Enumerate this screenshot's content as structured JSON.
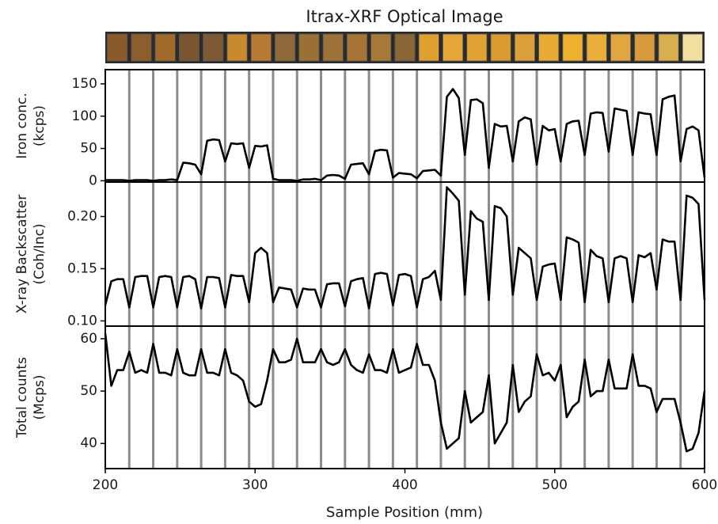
{
  "title": "Itrax-XRF Optical Image",
  "strip_colors": [
    "#8a5a2a",
    "#8c5e2b",
    "#a06a2a",
    "#7a5530",
    "#7d5a33",
    "#c98a2e",
    "#b87a35",
    "#8e6a3a",
    "#9a7035",
    "#9d7238",
    "#a57435",
    "#a77a3a",
    "#8a6535",
    "#e0a030",
    "#e5a838",
    "#e0a232",
    "#d99a30",
    "#dba03a",
    "#e8aa35",
    "#f0b030",
    "#e8ad3a",
    "#e0a640",
    "#d89a3a",
    "#d8b050",
    "#f0e0a0"
  ],
  "section_boundaries": [
    216,
    232,
    248,
    264,
    280,
    296,
    312,
    328,
    344,
    360,
    376,
    392,
    408,
    424,
    440,
    456,
    472,
    488,
    504,
    520,
    536,
    552,
    568,
    584
  ],
  "xlabel": "Sample Position (mm)",
  "xlim": [
    200,
    600
  ],
  "xticks": [
    200,
    300,
    400,
    500,
    600
  ],
  "x": [
    200,
    204,
    208,
    212,
    216,
    220,
    224,
    228,
    232,
    236,
    240,
    244,
    248,
    252,
    256,
    260,
    264,
    268,
    272,
    276,
    280,
    284,
    288,
    292,
    296,
    300,
    304,
    308,
    312,
    316,
    320,
    324,
    328,
    332,
    336,
    340,
    344,
    348,
    352,
    356,
    360,
    364,
    368,
    372,
    376,
    380,
    384,
    388,
    392,
    396,
    400,
    404,
    408,
    412,
    416,
    420,
    424,
    428,
    432,
    436,
    440,
    444,
    448,
    452,
    456,
    460,
    464,
    468,
    472,
    476,
    480,
    484,
    488,
    492,
    496,
    500,
    504,
    508,
    512,
    516,
    520,
    524,
    528,
    532,
    536,
    540,
    544,
    548,
    552,
    556,
    560,
    564,
    568,
    572,
    576,
    580,
    584,
    588,
    592,
    596,
    600
  ],
  "chart_data": [
    {
      "type": "line",
      "ylabel": [
        "Iron conc.",
        "(kcps)"
      ],
      "color": "#000000",
      "ylim": [
        -2,
        172
      ],
      "yticks": [
        0,
        50,
        100,
        150
      ],
      "values": [
        1,
        1,
        1,
        1,
        0,
        1,
        1,
        1,
        0,
        1,
        1,
        2,
        1,
        28,
        27,
        25,
        10,
        62,
        64,
        63,
        30,
        58,
        57,
        58,
        20,
        54,
        53,
        55,
        3,
        1,
        1,
        1,
        0,
        2,
        2,
        3,
        1,
        8,
        9,
        8,
        3,
        25,
        26,
        27,
        10,
        46,
        48,
        47,
        5,
        12,
        11,
        10,
        4,
        15,
        16,
        17,
        8,
        130,
        142,
        128,
        40,
        125,
        126,
        120,
        20,
        88,
        84,
        85,
        30,
        92,
        98,
        95,
        25,
        85,
        78,
        80,
        30,
        88,
        92,
        93,
        40,
        104,
        106,
        105,
        45,
        112,
        110,
        108,
        40,
        106,
        104,
        103,
        40,
        126,
        130,
        132,
        30,
        80,
        84,
        78,
        5
      ]
    },
    {
      "type": "line",
      "ylabel": [
        "X-ray Backscatter",
        "(Coh/Inc)"
      ],
      "color": "#000000",
      "ylim": [
        0.095,
        0.233
      ],
      "yticks": [
        {
          "value": 0.1,
          "label": "0.10"
        },
        0.15,
        {
          "value": 0.2,
          "label": "0.20"
        }
      ],
      "values": [
        0.115,
        0.138,
        0.14,
        0.14,
        0.113,
        0.142,
        0.143,
        0.143,
        0.113,
        0.142,
        0.143,
        0.142,
        0.113,
        0.142,
        0.143,
        0.14,
        0.112,
        0.142,
        0.142,
        0.141,
        0.113,
        0.144,
        0.143,
        0.143,
        0.118,
        0.165,
        0.17,
        0.165,
        0.118,
        0.132,
        0.131,
        0.13,
        0.113,
        0.131,
        0.13,
        0.13,
        0.113,
        0.135,
        0.136,
        0.136,
        0.114,
        0.138,
        0.14,
        0.141,
        0.112,
        0.145,
        0.146,
        0.145,
        0.115,
        0.144,
        0.145,
        0.143,
        0.113,
        0.14,
        0.142,
        0.148,
        0.12,
        0.228,
        0.222,
        0.215,
        0.125,
        0.205,
        0.198,
        0.195,
        0.12,
        0.21,
        0.208,
        0.2,
        0.125,
        0.17,
        0.165,
        0.16,
        0.12,
        0.152,
        0.154,
        0.155,
        0.12,
        0.18,
        0.178,
        0.175,
        0.118,
        0.168,
        0.162,
        0.16,
        0.118,
        0.16,
        0.162,
        0.16,
        0.118,
        0.163,
        0.161,
        0.165,
        0.13,
        0.178,
        0.176,
        0.176,
        0.12,
        0.22,
        0.218,
        0.212,
        0.12
      ]
    },
    {
      "type": "line",
      "ylabel": [
        "Total counts",
        "(Mcps)"
      ],
      "color": "#000000",
      "ylim": [
        35.2,
        62.4
      ],
      "yticks": [
        40,
        50,
        60
      ],
      "values": [
        61,
        51,
        54,
        54,
        57.5,
        53.5,
        54,
        53.5,
        59,
        53.5,
        53.5,
        53,
        58,
        53.5,
        53,
        53,
        58,
        53.5,
        53.5,
        53,
        58,
        53.5,
        53,
        52,
        48,
        47,
        47.5,
        52,
        58,
        55.5,
        55.5,
        56,
        60,
        55.5,
        55.5,
        55.5,
        58,
        55.5,
        55,
        55.5,
        58,
        55,
        54,
        53.5,
        57,
        54,
        54,
        53.5,
        58,
        53.5,
        54,
        54.5,
        59,
        55,
        55,
        52,
        44,
        39,
        40,
        41,
        50,
        44,
        45,
        46,
        53,
        40,
        42,
        44,
        55,
        46,
        48,
        49,
        57,
        53,
        53.5,
        52,
        55,
        45,
        47,
        48,
        56,
        49,
        50,
        50,
        56,
        50.5,
        50.5,
        50.5,
        57,
        51,
        51,
        50.5,
        46,
        48.5,
        48.5,
        48.5,
        44,
        38.5,
        39,
        42,
        50
      ]
    }
  ]
}
